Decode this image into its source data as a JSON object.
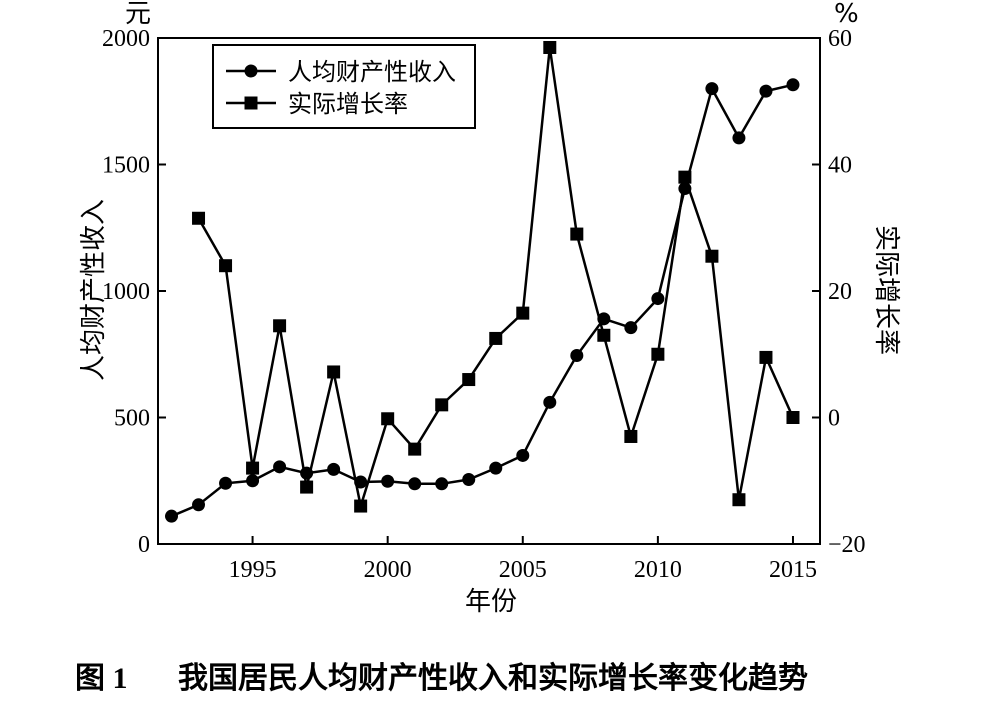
{
  "chart_data": {
    "type": "line",
    "caption_prefix": "图 1",
    "title": "我国居民人均财产性收入和实际增长率变化趋势",
    "xlabel": "年份",
    "ylabel_left": "人均财产性收入",
    "ylabel_right": "实际增长率",
    "left_unit": "元",
    "right_unit": "%",
    "xlim": [
      1991.5,
      2016
    ],
    "ylim_left": [
      0,
      2000
    ],
    "ylim_right": [
      -20,
      60
    ],
    "x_ticks": [
      1995,
      2000,
      2005,
      2010,
      2015
    ],
    "y_left_ticks": [
      0,
      500,
      1000,
      1500,
      2000
    ],
    "y_right_ticks": [
      -20,
      0,
      20,
      40,
      60
    ],
    "legend_position": "top-left",
    "series": [
      {
        "name": "人均财产性收入",
        "axis": "left",
        "marker": "circle",
        "x": [
          1992,
          1993,
          1994,
          1995,
          1996,
          1997,
          1998,
          1999,
          2000,
          2001,
          2002,
          2003,
          2004,
          2005,
          2006,
          2007,
          2008,
          2009,
          2010,
          2011,
          2012,
          2013,
          2014,
          2015
        ],
        "values": [
          110,
          155,
          240,
          250,
          305,
          280,
          295,
          245,
          248,
          238,
          238,
          255,
          300,
          350,
          560,
          745,
          890,
          855,
          970,
          1405,
          1800,
          1605,
          1790,
          1815
        ]
      },
      {
        "name": "实际增长率",
        "axis": "right",
        "marker": "square",
        "x": [
          1993,
          1994,
          1995,
          1996,
          1997,
          1998,
          1999,
          2000,
          2001,
          2002,
          2003,
          2004,
          2005,
          2006,
          2007,
          2008,
          2009,
          2010,
          2011,
          2012,
          2013,
          2014,
          2015
        ],
        "values": [
          31.5,
          24,
          -8,
          14.5,
          -11,
          7.2,
          -14,
          -0.2,
          -5,
          2,
          6,
          12.5,
          16.5,
          58.5,
          29,
          13,
          -3,
          10,
          38,
          25.5,
          -13,
          9.5,
          0
        ]
      }
    ]
  }
}
